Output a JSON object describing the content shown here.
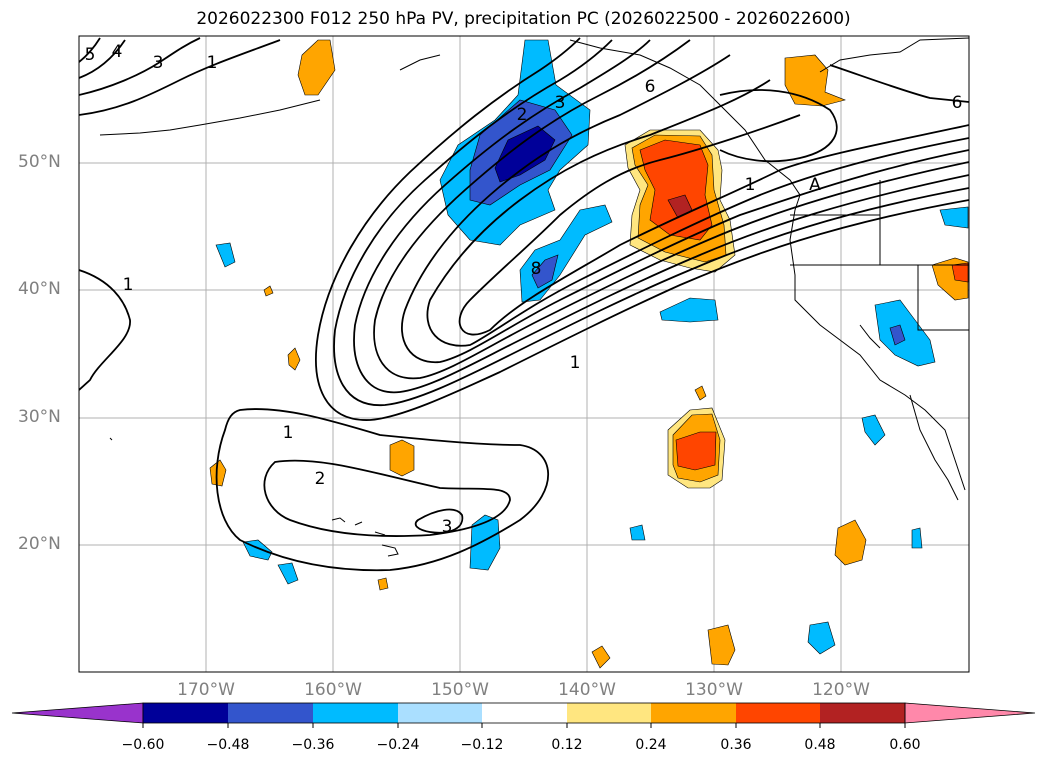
{
  "title": "2026022300 F012 250 hPa PV, precipitation PC (2026022500 - 2026022600)",
  "colors": {
    "levels": [
      "#9933cc",
      "#000099",
      "#3355cc",
      "#00bbff",
      "#aadfff",
      "#ffffff",
      "#ffe680",
      "#ffa500",
      "#ff4500",
      "#b22222",
      "#ff88aa"
    ],
    "grid": "#b0b0b0",
    "contour": "#000000"
  },
  "latitude_labels": [
    "50°N",
    "40°N",
    "30°N",
    "20°N"
  ],
  "longitude_labels": [
    "170°W",
    "160°W",
    "150°W",
    "140°W",
    "130°W",
    "120°W"
  ],
  "colorbar": {
    "boundaries": [
      -0.6,
      -0.48,
      -0.36,
      -0.24,
      -0.12,
      0.12,
      0.24,
      0.36,
      0.48,
      0.6
    ],
    "tick_labels": [
      "−0.60",
      "−0.48",
      "−0.36",
      "−0.24",
      "−0.12",
      "0.12",
      "0.24",
      "0.36",
      "0.48",
      "0.60"
    ]
  },
  "contour_labels": [
    "5",
    "4",
    "3",
    "1",
    "2",
    "3",
    "6",
    "6",
    "1",
    "A",
    "1",
    "8",
    "1",
    "1",
    "2",
    "3"
  ]
}
